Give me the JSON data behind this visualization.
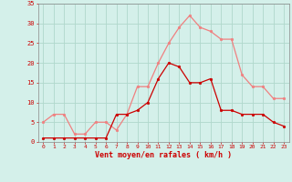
{
  "hours": [
    0,
    1,
    2,
    3,
    4,
    5,
    6,
    7,
    8,
    9,
    10,
    11,
    12,
    13,
    14,
    15,
    16,
    17,
    18,
    19,
    20,
    21,
    22,
    23
  ],
  "wind_mean": [
    1,
    1,
    1,
    1,
    1,
    1,
    1,
    7,
    7,
    8,
    10,
    16,
    20,
    19,
    15,
    15,
    16,
    8,
    8,
    7,
    7,
    7,
    5,
    4
  ],
  "wind_gust": [
    5,
    7,
    7,
    2,
    2,
    5,
    5,
    3,
    7,
    14,
    14,
    20,
    25,
    29,
    32,
    29,
    28,
    26,
    26,
    17,
    14,
    14,
    11,
    11
  ],
  "bg_color": "#d4f0ea",
  "grid_color": "#b0d8cc",
  "mean_color": "#cc0000",
  "gust_color": "#f08080",
  "xlabel": "Vent moyen/en rafales ( km/h )",
  "xlabel_color": "#cc0000",
  "tick_color": "#cc0000",
  "ylim": [
    0,
    35
  ],
  "yticks": [
    0,
    5,
    10,
    15,
    20,
    25,
    30,
    35
  ]
}
